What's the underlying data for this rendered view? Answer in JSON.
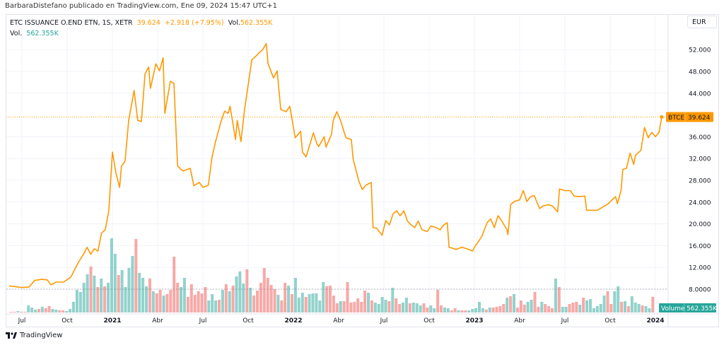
{
  "header": {
    "published": "BarbaraDistefano publicado en TradingView.com, Ene 09, 2024 15:47 UTC+1"
  },
  "legend": {
    "symbol": "ETC ISSUANCE O.END ETN, 1S, XETR",
    "last": "39.624",
    "change": "+2.918 (+7.95%)",
    "vol_label": "Vol.",
    "vol_value": "562.355K",
    "vol_row_label": "Vol.",
    "vol_row_value": "562.355K"
  },
  "currency_button": "EUR",
  "price_badge": {
    "ticker": "BTCE",
    "value": "39.624"
  },
  "volume_badge": {
    "label": "Volume",
    "value": "562.355K"
  },
  "footer": {
    "brand": "TradingView"
  },
  "colors": {
    "line": "#ff9800",
    "up": "#26a69a",
    "down": "#ef5350"
  },
  "chart_data": {
    "type": "line",
    "title": "ETC ISSUANCE O.END ETN, 1S, XETR",
    "ylabel": "EUR",
    "ylim": [
      6,
      54
    ],
    "y_ticks": [
      {
        "v": 52,
        "label": "52.000"
      },
      {
        "v": 48,
        "label": "48.000"
      },
      {
        "v": 44,
        "label": "44.000"
      },
      {
        "v": 36,
        "label": "36.000"
      },
      {
        "v": 32,
        "label": "32.000"
      },
      {
        "v": 28,
        "label": "28.000"
      },
      {
        "v": 24,
        "label": "24.000"
      },
      {
        "v": 20,
        "label": "20.000"
      },
      {
        "v": 16,
        "label": "16.000"
      },
      {
        "v": 12,
        "label": "12.000"
      },
      {
        "v": 8,
        "label": "8.0000"
      }
    ],
    "x_ticks": [
      {
        "t": 2020.5,
        "label": "Jul",
        "major": false
      },
      {
        "t": 2020.75,
        "label": "Oct",
        "major": false
      },
      {
        "t": 2021.0,
        "label": "2021",
        "major": true
      },
      {
        "t": 2021.25,
        "label": "Abr",
        "major": false
      },
      {
        "t": 2021.5,
        "label": "Jul",
        "major": false
      },
      {
        "t": 2021.75,
        "label": "Oct",
        "major": false
      },
      {
        "t": 2022.0,
        "label": "2022",
        "major": true
      },
      {
        "t": 2022.25,
        "label": "Abr",
        "major": false
      },
      {
        "t": 2022.5,
        "label": "Jul",
        "major": false
      },
      {
        "t": 2022.75,
        "label": "Oct",
        "major": false
      },
      {
        "t": 2023.0,
        "label": "2023",
        "major": true
      },
      {
        "t": 2023.25,
        "label": "Abr",
        "major": false
      },
      {
        "t": 2023.5,
        "label": "Jul",
        "major": false
      },
      {
        "t": 2023.75,
        "label": "Oct",
        "major": false
      },
      {
        "t": 2024.0,
        "label": "2024",
        "major": true
      }
    ],
    "price_series": {
      "name": "BTCE",
      "t": [
        2020.43,
        2020.5,
        2020.54,
        2020.57,
        2020.61,
        2020.64,
        2020.66,
        2020.69,
        2020.73,
        2020.77,
        2020.81,
        2020.84,
        2020.86,
        2020.88,
        2020.9,
        2020.92,
        2020.94,
        2020.96,
        2020.98,
        2021.0,
        2021.02,
        2021.04,
        2021.05,
        2021.07,
        2021.09,
        2021.12,
        2021.14,
        2021.16,
        2021.18,
        2021.2,
        2021.21,
        2021.24,
        2021.26,
        2021.28,
        2021.29,
        2021.32,
        2021.34,
        2021.36,
        2021.39,
        2021.43,
        2021.45,
        2021.48,
        2021.5,
        2021.53,
        2021.55,
        2021.57,
        2021.6,
        2021.62,
        2021.64,
        2021.65,
        2021.68,
        2021.69,
        2021.71,
        2021.73,
        2021.75,
        2021.77,
        2021.79,
        2021.81,
        2021.83,
        2021.85,
        2021.86,
        2021.89,
        2021.91,
        2021.93,
        2021.96,
        2021.98,
        2022.01,
        2022.04,
        2022.05,
        2022.07,
        2022.11,
        2022.13,
        2022.14,
        2022.17,
        2022.18,
        2022.21,
        2022.22,
        2022.24,
        2022.26,
        2022.29,
        2022.32,
        2022.33,
        2022.36,
        2022.38,
        2022.4,
        2022.43,
        2022.44,
        2022.46,
        2022.49,
        2022.51,
        2022.53,
        2022.55,
        2022.57,
        2022.59,
        2022.61,
        2022.63,
        2022.65,
        2022.67,
        2022.69,
        2022.71,
        2022.74,
        2022.76,
        2022.79,
        2022.81,
        2022.83,
        2022.85,
        2022.86,
        2022.9,
        2022.93,
        2022.96,
        2022.99,
        2023.0,
        2023.04,
        2023.07,
        2023.09,
        2023.11,
        2023.13,
        2023.15,
        2023.18,
        2023.185,
        2023.2,
        2023.22,
        2023.25,
        2023.27,
        2023.29,
        2023.31,
        2023.33,
        2023.36,
        2023.38,
        2023.41,
        2023.43,
        2023.46,
        2023.47,
        2023.5,
        2023.53,
        2023.55,
        2023.58,
        2023.61,
        2023.62,
        2023.68,
        2023.71,
        2023.74,
        2023.76,
        2023.78,
        2023.79,
        2023.81,
        2023.82,
        2023.84,
        2023.86,
        2023.88,
        2023.89,
        2023.92,
        2023.94,
        2023.96,
        2023.98,
        2024.0,
        2024.02,
        2024.035
      ],
      "price": [
        8.6,
        8.3,
        8.4,
        9.6,
        9.8,
        9.7,
        8.8,
        9.3,
        9.3,
        10.2,
        12.8,
        14.4,
        15.7,
        14.4,
        15.4,
        15.0,
        18.3,
        18.9,
        22.4,
        33.2,
        29.3,
        26.7,
        30.6,
        31.5,
        39.0,
        44.5,
        39.0,
        38.8,
        47.5,
        48.8,
        44.9,
        49.4,
        48.1,
        50.5,
        40.3,
        46.2,
        45.8,
        30.6,
        29.7,
        30.2,
        27.0,
        27.6,
        26.7,
        27.1,
        32.2,
        35.1,
        38.8,
        40.7,
        40.3,
        41.6,
        35.5,
        39.0,
        35.1,
        41.0,
        45.5,
        50.1,
        50.7,
        51.4,
        52.0,
        53.1,
        49.4,
        46.8,
        48.1,
        41.0,
        40.6,
        41.6,
        35.8,
        37.0,
        33.2,
        32.3,
        36.7,
        34.7,
        34.2,
        36.0,
        34.1,
        36.4,
        39.0,
        40.6,
        39.0,
        35.8,
        35.5,
        31.9,
        28.0,
        26.3,
        27.1,
        27.6,
        19.3,
        19.2,
        17.9,
        20.6,
        19.8,
        21.8,
        22.4,
        21.5,
        22.4,
        20.5,
        19.8,
        19.3,
        20.5,
        18.9,
        18.6,
        19.6,
        19.3,
        18.9,
        19.8,
        20.2,
        15.7,
        15.3,
        15.7,
        15.4,
        15.0,
        15.7,
        17.6,
        20.2,
        20.9,
        19.3,
        21.5,
        20.6,
        18.9,
        18.0,
        23.5,
        24.1,
        24.4,
        26.1,
        24.1,
        25.0,
        25.2,
        22.8,
        23.3,
        23.5,
        23.3,
        22.2,
        26.4,
        26.1,
        26.1,
        25.1,
        25.0,
        25.1,
        22.5,
        22.5,
        23.1,
        23.7,
        24.4,
        25.0,
        23.7,
        26.1,
        30.0,
        30.2,
        33.0,
        30.9,
        32.6,
        33.5,
        37.7,
        35.8,
        36.8,
        36.0,
        36.8,
        39.624
      ]
    },
    "volume_series": {
      "name": "Volume",
      "interval_weeks": 1,
      "start_t": 2020.44,
      "values_k": [
        26,
        26,
        51,
        26,
        26,
        256,
        179,
        102,
        128,
        205,
        154,
        230,
        128,
        102,
        77,
        77,
        51,
        128,
        384,
        819,
        742,
        1075,
        1382,
        1664,
        1331,
        922,
        1229,
        947,
        1075,
        2688,
        2125,
        1357,
        1536,
        922,
        1613,
        2048,
        2662,
        1434,
        1254,
        947,
        1229,
        768,
        691,
        819,
        614,
        666,
        819,
        2022,
        1075,
        922,
        1254,
        562,
        1024,
        640,
        768,
        691,
        922,
        435,
        666,
        435,
        461,
        819,
        1024,
        768,
        973,
        1306,
        1485,
        1050,
        1562,
        896,
        614,
        794,
        1075,
        1613,
        1254,
        998,
        845,
        640,
        435,
        1075,
        973,
        666,
        1254,
        538,
        717,
        562,
        666,
        691,
        691,
        435,
        1101,
        947,
        973,
        614,
        333,
        410,
        410,
        1101,
        358,
        384,
        512,
        384,
        794,
        717,
        435,
        358,
        307,
        562,
        461,
        410,
        896,
        512,
        307,
        358,
        538,
        333,
        358,
        333,
        256,
        333,
        179,
        256,
        154,
        819,
        256,
        179,
        154,
        77,
        154,
        77,
        77,
        77,
        77,
        128,
        154,
        384,
        154,
        102,
        179,
        179,
        205,
        230,
        307,
        538,
        589,
        666,
        179,
        435,
        282,
        384,
        461,
        742,
        205,
        384,
        307,
        230,
        154,
        1229,
        922,
        205,
        205,
        307,
        358,
        384,
        282,
        538,
        435,
        486,
        154,
        230,
        307,
        614,
        768,
        307,
        768,
        947,
        384,
        410,
        230,
        589,
        358,
        307,
        256,
        230,
        154,
        562.355
      ],
      "up": [
        0,
        0,
        1,
        0,
        0,
        1,
        1,
        1,
        0,
        1,
        0,
        0,
        1,
        1,
        0,
        0,
        1,
        1,
        1,
        1,
        1,
        1,
        1,
        0,
        1,
        0,
        1,
        0,
        1,
        1,
        1,
        0,
        1,
        1,
        1,
        1,
        0,
        1,
        1,
        1,
        0,
        1,
        0,
        0,
        1,
        0,
        0,
        0,
        0,
        1,
        1,
        0,
        0,
        0,
        0,
        0,
        0,
        1,
        1,
        1,
        0,
        1,
        0,
        1,
        0,
        1,
        1,
        1,
        0,
        1,
        0,
        0,
        0,
        0,
        0,
        0,
        0,
        1,
        0,
        0,
        1,
        0,
        1,
        1,
        1,
        0,
        1,
        1,
        1,
        1,
        1,
        0,
        0,
        0,
        0,
        1,
        0,
        0,
        0,
        0,
        0,
        0,
        0,
        1,
        0,
        1,
        1,
        1,
        1,
        0,
        1,
        0,
        0,
        1,
        1,
        0,
        1,
        1,
        1,
        0,
        0,
        1,
        1,
        0,
        0,
        1,
        1,
        0,
        0,
        1,
        0,
        0,
        1,
        1,
        1,
        1,
        1,
        0,
        1,
        0,
        0,
        0,
        0,
        1,
        0,
        1,
        0,
        0,
        0,
        1,
        1,
        0,
        0,
        1,
        0,
        0,
        0,
        1,
        0,
        1,
        1,
        0,
        0,
        0,
        1,
        0,
        1,
        1,
        1,
        1,
        1,
        1,
        0,
        0,
        1,
        1,
        0,
        1,
        0,
        1,
        1,
        1,
        0,
        1,
        1,
        0
      ]
    }
  }
}
